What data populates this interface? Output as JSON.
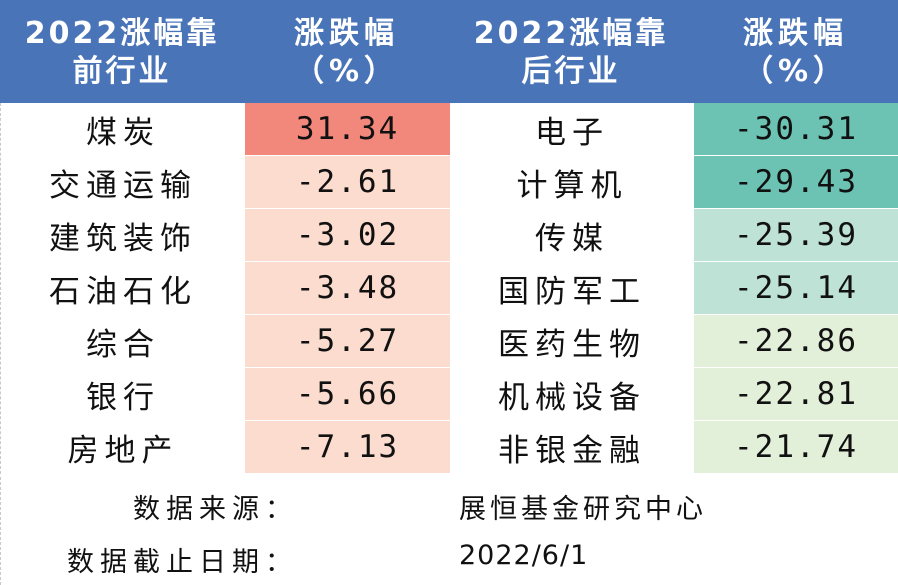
{
  "chart_data": {
    "type": "table",
    "headers": [
      "2022涨幅靠\n前行业",
      "涨跌幅\n（%）",
      "2022涨幅靠\n后行业",
      "涨跌幅\n（%）"
    ],
    "top_industries": [
      "煤炭",
      "交通运输",
      "建筑装饰",
      "石油石化",
      "综合",
      "银行",
      "房地产"
    ],
    "top_values": [
      "31.34",
      "-2.61",
      "-3.02",
      "-3.48",
      "-5.27",
      "-5.66",
      "-7.13"
    ],
    "bottom_industries": [
      "电子",
      "计算机",
      "传媒",
      "国防军工",
      "医药生物",
      "机械设备",
      "非银金融"
    ],
    "bottom_values": [
      "-30.31",
      "-29.43",
      "-25.39",
      "-25.14",
      "-22.86",
      "-22.81",
      "-21.74"
    ],
    "source_label": "数据来源：",
    "source_value": "展恒基金研究中心",
    "date_label": "数据截止日期：",
    "date_value": "2022/6/1"
  },
  "colors": {
    "header_bg": "#4a74b8",
    "header_text": "#ffffff",
    "top_value_cells": [
      "#f2877b",
      "#fcdccf",
      "#fcdccf",
      "#fcdccf",
      "#fcdccf",
      "#fcdccf",
      "#fcdccf"
    ],
    "bottom_value_cells": [
      "#6cc3b3",
      "#6cc3b3",
      "#bfe2d6",
      "#bfe2d6",
      "#e2efd9",
      "#e2efd9",
      "#e2efd9"
    ]
  }
}
